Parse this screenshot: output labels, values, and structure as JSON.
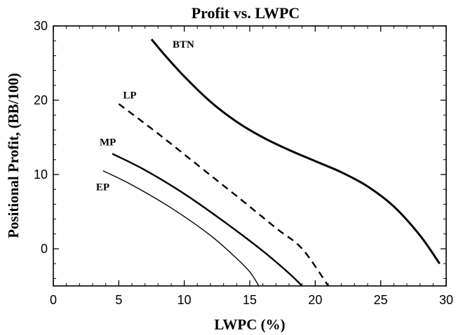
{
  "chart_data": {
    "type": "line",
    "title": "Profit vs. LWPC",
    "xlabel": "LWPC (%)",
    "ylabel": "Positional Profit, (BB/100)",
    "xlim": [
      0,
      30
    ],
    "ylim": [
      -5,
      30
    ],
    "xticks": [
      0,
      5,
      10,
      15,
      20,
      25,
      30
    ],
    "yticks": [
      0,
      10,
      20,
      30
    ],
    "grid": false,
    "series": [
      {
        "name": "BTN",
        "style": "solid",
        "weight": "thick",
        "x": [
          7.5,
          8.5,
          10,
          12,
          14,
          16,
          18,
          20,
          22,
          24,
          26,
          28,
          29.5
        ],
        "y": [
          28.2,
          26.1,
          23.2,
          19.8,
          17.1,
          15.0,
          13.3,
          11.8,
          10.3,
          8.4,
          5.7,
          1.8,
          -2.0
        ]
      },
      {
        "name": "LP",
        "style": "dashed",
        "weight": "medium",
        "x": [
          5,
          8,
          11,
          14,
          17,
          19,
          21
        ],
        "y": [
          19.5,
          15.5,
          11.3,
          7.1,
          2.8,
          0.0,
          -5.0
        ]
      },
      {
        "name": "MP",
        "style": "solid",
        "weight": "medium",
        "x": [
          4.5,
          7,
          10,
          13,
          16,
          18,
          19
        ],
        "y": [
          12.8,
          10.6,
          7.4,
          3.7,
          -0.3,
          -3.3,
          -5.0
        ]
      },
      {
        "name": "EP",
        "style": "solid",
        "weight": "thin",
        "x": [
          3.8,
          6,
          9,
          12,
          14,
          15,
          15.7
        ],
        "y": [
          10.5,
          8.6,
          5.5,
          1.8,
          -1.3,
          -3.1,
          -5.0
        ]
      }
    ],
    "labels": [
      {
        "text": "BTN",
        "series": "BTN"
      },
      {
        "text": "LP",
        "series": "LP"
      },
      {
        "text": "MP",
        "series": "MP"
      },
      {
        "text": "EP",
        "series": "EP"
      }
    ]
  }
}
